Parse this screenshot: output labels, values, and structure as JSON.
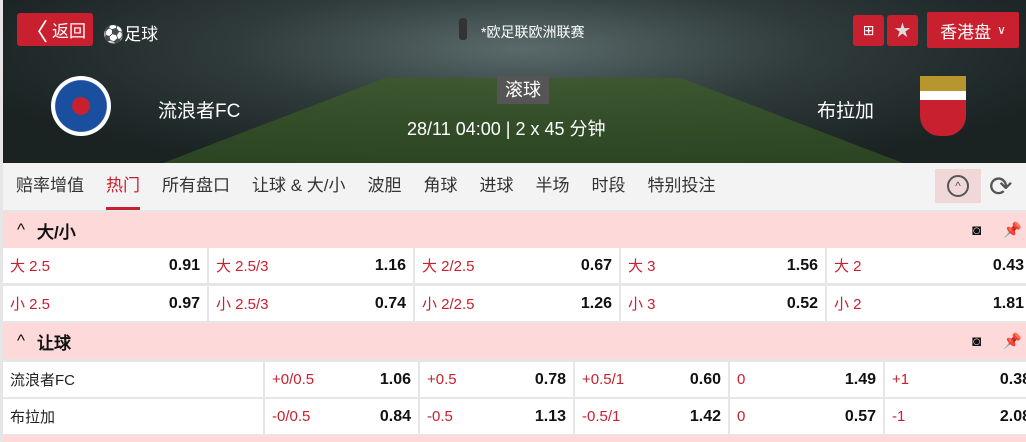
{
  "header": {
    "back": "返回",
    "sport": "足球",
    "league": "*欧足联欧洲联赛",
    "odds_type": "香港盘",
    "status": "滚球",
    "datetime": "28/11 04:00",
    "duration": "2 x 45 分钟",
    "home": "流浪者FC",
    "away": "布拉加"
  },
  "tabs": [
    "赔率增值",
    "热门",
    "所有盘口",
    "让球 & 大/小",
    "波胆",
    "角球",
    "进球",
    "半场",
    "时段",
    "特别投注"
  ],
  "active_tab": "热门",
  "over_under": {
    "title": "大/小",
    "rows": [
      [
        [
          "大 2.5",
          "0.91"
        ],
        [
          "大 2.5/3",
          "1.16"
        ],
        [
          "大 2/2.5",
          "0.67"
        ],
        [
          "大 3",
          "1.56"
        ],
        [
          "大 2",
          "0.43"
        ]
      ],
      [
        [
          "小 2.5",
          "0.97"
        ],
        [
          "小 2.5/3",
          "0.74"
        ],
        [
          "小 2/2.5",
          "1.26"
        ],
        [
          "小 3",
          "0.52"
        ],
        [
          "小 2",
          "1.81"
        ]
      ]
    ]
  },
  "handicap": {
    "title": "让球",
    "rows": [
      {
        "team": "流浪者FC",
        "cells": [
          [
            "+0/0.5",
            "1.06"
          ],
          [
            "+0.5",
            "0.78"
          ],
          [
            "+0.5/1",
            "0.60"
          ],
          [
            "0",
            "1.49"
          ],
          [
            "+1",
            "0.38"
          ]
        ]
      },
      {
        "team": "布拉加",
        "cells": [
          [
            "-0/0.5",
            "0.84"
          ],
          [
            "-0.5",
            "1.13"
          ],
          [
            "-0.5/1",
            "1.42"
          ],
          [
            "0",
            "0.57"
          ],
          [
            "-1",
            "2.08"
          ]
        ]
      }
    ]
  },
  "colors": {
    "accent": "#c8202e",
    "section_bg": "#fdd9d9"
  }
}
